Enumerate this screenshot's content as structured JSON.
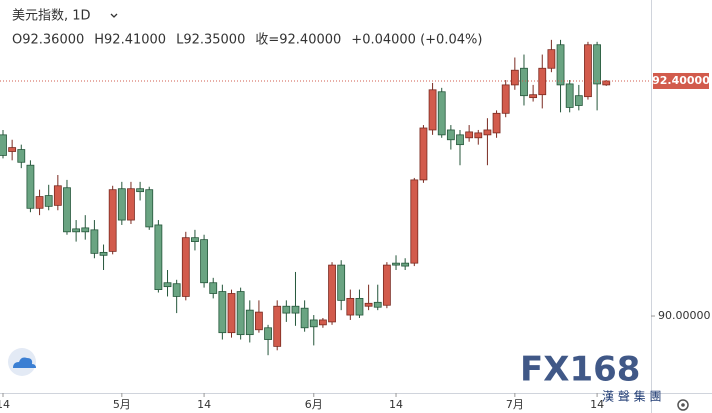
{
  "chart_data": {
    "type": "candlestick",
    "title": "美元指数, 1D",
    "ohlc_legend": [
      "O92.36000",
      "H92.41000",
      "L92.35000",
      "收=92.40000",
      "+0.04000 (+0.04%)"
    ],
    "categories": [
      "14",
      null,
      null,
      null,
      null,
      null,
      null,
      null,
      null,
      null,
      null,
      null,
      null,
      "5月",
      null,
      null,
      null,
      null,
      null,
      null,
      null,
      null,
      "14",
      null,
      null,
      null,
      null,
      null,
      null,
      null,
      null,
      null,
      null,
      null,
      "6月",
      null,
      null,
      null,
      null,
      null,
      null,
      null,
      null,
      "14",
      null,
      null,
      null,
      null,
      null,
      null,
      null,
      null,
      null,
      null,
      null,
      null,
      "7月",
      null,
      null,
      null,
      null,
      null,
      null,
      null,
      null,
      "14",
      null
    ],
    "open": [
      91.85,
      91.68,
      91.7,
      91.54,
      91.1,
      91.23,
      91.13,
      91.31,
      90.89,
      90.9,
      90.88,
      90.65,
      90.66,
      91.3,
      90.98,
      91.3,
      91.29,
      90.93,
      90.34,
      90.33,
      90.2,
      90.8,
      90.78,
      90.34,
      90.25,
      89.83,
      90.25,
      90.06,
      89.86,
      89.88,
      89.69,
      90.1,
      90.1,
      90.08,
      89.96,
      89.91,
      89.94,
      90.52,
      90.01,
      90.18,
      90.1,
      90.14,
      90.11,
      90.54,
      90.54,
      90.54,
      91.39,
      91.9,
      92.29,
      91.9,
      91.85,
      91.82,
      91.82,
      91.85,
      91.87,
      92.07,
      92.36,
      92.53,
      92.23,
      92.26,
      92.53,
      92.77,
      92.37,
      92.25,
      92.24,
      92.77,
      92.36
    ],
    "high": [
      91.9,
      91.8,
      91.75,
      91.59,
      91.29,
      91.34,
      91.44,
      91.39,
      90.98,
      91.03,
      90.98,
      90.73,
      91.33,
      91.37,
      91.37,
      91.37,
      91.32,
      90.98,
      90.47,
      90.37,
      90.86,
      90.88,
      90.83,
      90.39,
      90.32,
      90.27,
      90.29,
      90.16,
      90.16,
      89.91,
      90.16,
      90.16,
      90.45,
      90.16,
      90.01,
      89.98,
      90.55,
      90.57,
      90.27,
      90.27,
      90.32,
      90.32,
      90.55,
      90.62,
      90.59,
      91.41,
      91.95,
      92.38,
      92.33,
      91.95,
      91.9,
      91.95,
      91.9,
      92.02,
      92.1,
      92.41,
      92.64,
      92.67,
      92.36,
      92.67,
      92.82,
      92.82,
      92.41,
      92.36,
      92.8,
      92.8,
      92.41
    ],
    "low": [
      91.61,
      91.59,
      91.51,
      91.06,
      91.03,
      91.08,
      91.08,
      90.83,
      90.76,
      90.78,
      90.59,
      90.47,
      90.63,
      90.93,
      90.94,
      91.18,
      90.88,
      90.24,
      90.2,
      90.03,
      90.16,
      90.67,
      90.29,
      90.18,
      89.76,
      89.78,
      89.76,
      89.73,
      89.83,
      89.6,
      89.65,
      89.94,
      89.9,
      89.84,
      89.7,
      89.88,
      89.91,
      90.06,
      89.96,
      89.98,
      90.06,
      90.06,
      90.08,
      90.47,
      90.47,
      90.51,
      91.36,
      91.85,
      91.82,
      91.7,
      91.54,
      91.78,
      91.75,
      91.54,
      91.82,
      92.03,
      92.31,
      92.15,
      92.19,
      92.12,
      92.49,
      92.08,
      92.08,
      92.1,
      92.21,
      92.1,
      92.35
    ],
    "close": [
      91.64,
      91.72,
      91.57,
      91.1,
      91.22,
      91.12,
      91.33,
      90.86,
      90.86,
      90.86,
      90.64,
      90.62,
      91.29,
      90.98,
      91.3,
      91.27,
      90.91,
      90.27,
      90.3,
      90.2,
      90.8,
      90.76,
      90.34,
      90.23,
      89.83,
      90.23,
      89.81,
      89.81,
      90.04,
      89.76,
      90.1,
      90.03,
      90.03,
      89.88,
      89.89,
      89.96,
      90.52,
      90.16,
      90.18,
      90.01,
      90.13,
      90.09,
      90.52,
      90.52,
      90.51,
      91.39,
      91.92,
      92.31,
      91.85,
      91.8,
      91.75,
      91.88,
      91.87,
      91.9,
      92.07,
      92.36,
      92.51,
      92.25,
      92.26,
      92.53,
      92.72,
      92.36,
      92.13,
      92.15,
      92.77,
      92.37,
      92.4
    ],
    "up_color": "#d25b4c",
    "down_color": "#6aa482",
    "ylim": [
      89.214,
      93.227
    ],
    "yticks": [
      {
        "value": 90,
        "label": "90.00000"
      }
    ],
    "last_price": {
      "value": 92.4,
      "label": "92.40000"
    }
  },
  "watermark": {
    "brand": "FX168",
    "sub": "漢 聲 集 團"
  }
}
